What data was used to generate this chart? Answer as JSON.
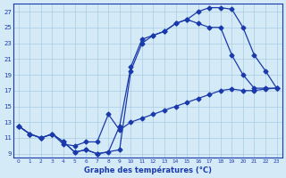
{
  "xlabel": "Graphe des températures (°C)",
  "bg_color": "#d4eaf7",
  "grid_color": "#aacce4",
  "line_color": "#1a3aab",
  "xlim": [
    -0.5,
    23.5
  ],
  "ylim": [
    8.5,
    28
  ],
  "yticks": [
    9,
    11,
    13,
    15,
    17,
    19,
    21,
    23,
    25,
    27
  ],
  "xticks": [
    0,
    1,
    2,
    3,
    4,
    5,
    6,
    7,
    8,
    9,
    10,
    11,
    12,
    13,
    14,
    15,
    16,
    17,
    18,
    19,
    20,
    21,
    22,
    23
  ],
  "line1_x": [
    0,
    1,
    2,
    3,
    4,
    5,
    6,
    7,
    8,
    9,
    10,
    11,
    12,
    13,
    14,
    15,
    16,
    17,
    18,
    19,
    20,
    21,
    22,
    23
  ],
  "line1_y": [
    12.5,
    11.5,
    11.0,
    11.5,
    10.2,
    10.0,
    10.5,
    10.5,
    14.0,
    12.0,
    13.0,
    13.5,
    14.0,
    14.5,
    15.0,
    15.5,
    16.0,
    16.5,
    17.0,
    17.2,
    17.0,
    17.0,
    17.2,
    17.3
  ],
  "line2_x": [
    0,
    1,
    2,
    3,
    4,
    5,
    6,
    7,
    9,
    10,
    11,
    12,
    13,
    14,
    15,
    16,
    17,
    18,
    19,
    20,
    21,
    22,
    23
  ],
  "line2_y": [
    12.5,
    11.5,
    11.0,
    11.5,
    10.5,
    9.2,
    9.5,
    9.0,
    9.5,
    19.5,
    23.0,
    24.0,
    24.5,
    25.5,
    26.0,
    27.0,
    27.5,
    27.5,
    27.3,
    25.0,
    21.5,
    19.5,
    17.3
  ],
  "line3_x": [
    0,
    1,
    2,
    3,
    4,
    5,
    6,
    7,
    8,
    9,
    10,
    11,
    12,
    13,
    14,
    15,
    16,
    17,
    18,
    19,
    20,
    21,
    22,
    23
  ],
  "line3_y": [
    12.5,
    11.5,
    11.0,
    11.5,
    10.5,
    9.2,
    9.5,
    9.0,
    9.2,
    12.5,
    20.0,
    23.5,
    24.0,
    24.5,
    25.5,
    26.0,
    25.5,
    25.0,
    25.0,
    21.5,
    19.0,
    17.3,
    17.3,
    17.3
  ]
}
